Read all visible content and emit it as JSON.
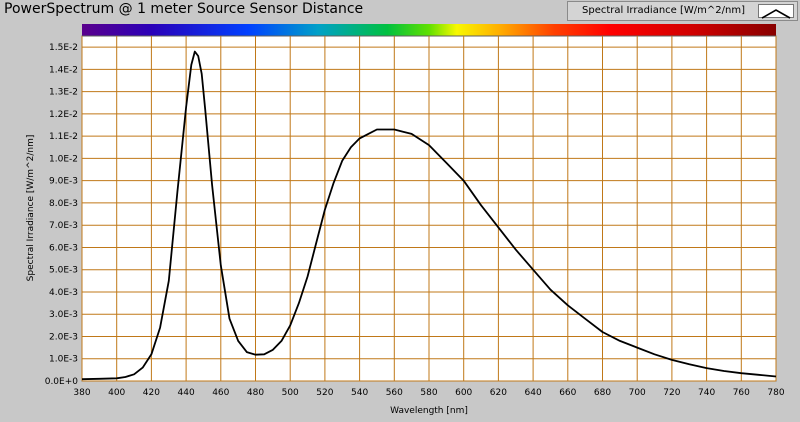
{
  "window": {
    "title": "PowerSpectrum @ 1 meter Source Sensor Distance"
  },
  "legend": {
    "label": "Spectral Irradiance [W/m^2/nm]",
    "swatch_icon": "line-plot-swatch-icon"
  },
  "colors": {
    "background": "#c8c8c8",
    "plot_area": "#ffffff",
    "grid": "#c07818",
    "trace": "#000000"
  },
  "chart_data": {
    "type": "line",
    "title": "PowerSpectrum @ 1 meter Source Sensor Distance",
    "xlabel": "Wavelength [nm]",
    "ylabel": "Spectral Irradiance [W/m^2/nm]",
    "xlim": [
      380,
      780
    ],
    "ylim": [
      0,
      0.0155
    ],
    "grid": true,
    "legend_position": "top-right",
    "spectrum_bar": true,
    "x_ticks": [
      "380",
      "400",
      "420",
      "440",
      "460",
      "480",
      "500",
      "520",
      "540",
      "560",
      "580",
      "600",
      "620",
      "640",
      "660",
      "680",
      "700",
      "720",
      "740",
      "760",
      "780"
    ],
    "y_ticks": [
      "0.0E+0",
      "1.0E-3",
      "2.0E-3",
      "3.0E-3",
      "4.0E-3",
      "5.0E-3",
      "6.0E-3",
      "7.0E-3",
      "8.0E-3",
      "9.0E-3",
      "1.0E-2",
      "1.1E-2",
      "1.2E-2",
      "1.3E-2",
      "1.4E-2",
      "1.5E-2"
    ],
    "series": [
      {
        "name": "Spectral Irradiance [W/m^2/nm]",
        "x": [
          380,
          390,
          400,
          405,
          410,
          415,
          420,
          425,
          430,
          435,
          440,
          443,
          445,
          447,
          449,
          451,
          455,
          460,
          465,
          470,
          475,
          480,
          485,
          490,
          495,
          500,
          505,
          510,
          515,
          520,
          525,
          530,
          535,
          540,
          545,
          550,
          555,
          560,
          565,
          570,
          580,
          590,
          600,
          610,
          620,
          630,
          640,
          650,
          660,
          670,
          680,
          690,
          700,
          710,
          720,
          730,
          740,
          750,
          760,
          770,
          780
        ],
        "y": [
          8e-05,
          0.0001,
          0.00012,
          0.00018,
          0.0003,
          0.0006,
          0.0012,
          0.0024,
          0.0045,
          0.0085,
          0.0123,
          0.0142,
          0.0148,
          0.0146,
          0.0138,
          0.0122,
          0.0088,
          0.0052,
          0.0028,
          0.0018,
          0.0013,
          0.00118,
          0.0012,
          0.0014,
          0.0018,
          0.0025,
          0.0035,
          0.0047,
          0.0062,
          0.0077,
          0.0089,
          0.0099,
          0.0105,
          0.0109,
          0.0111,
          0.0113,
          0.0113,
          0.0113,
          0.0112,
          0.0111,
          0.0106,
          0.0098,
          0.009,
          0.0079,
          0.0069,
          0.0059,
          0.005,
          0.0041,
          0.0034,
          0.0028,
          0.0022,
          0.0018,
          0.0015,
          0.0012,
          0.00095,
          0.00075,
          0.00058,
          0.00045,
          0.00035,
          0.00028,
          0.0002
        ]
      }
    ]
  }
}
